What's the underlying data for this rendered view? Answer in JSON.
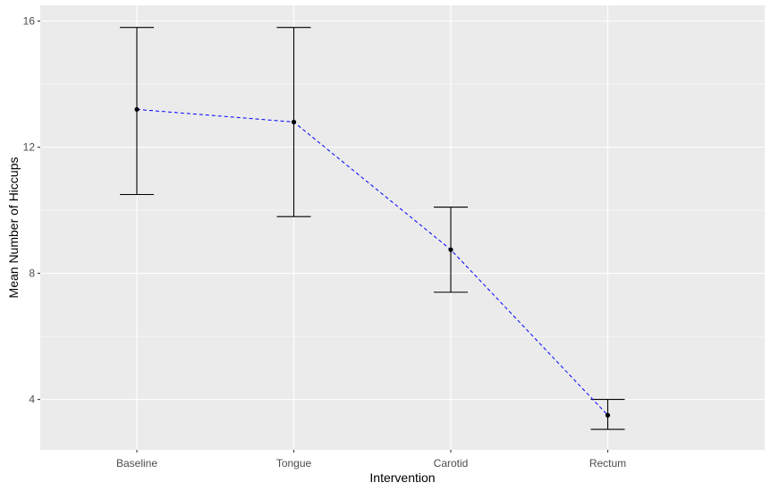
{
  "chart_data": {
    "type": "line",
    "xlabel": "Intervention",
    "ylabel": "Mean Number of Hiccups",
    "categories": [
      "Baseline",
      "Tongue",
      "Carotid",
      "Rectum"
    ],
    "series": [
      {
        "values": [
          13.2,
          12.8,
          8.75,
          3.5
        ],
        "lower": [
          10.5,
          9.8,
          7.4,
          3.05
        ],
        "upper": [
          15.8,
          15.8,
          10.1,
          4.0
        ],
        "line_color": "#0000ff",
        "line_style": "dashed",
        "point_color": "#000000",
        "errorbar_color": "#000000"
      }
    ],
    "ylim": [
      2.4,
      16.5
    ],
    "yticks": [
      4,
      8,
      12,
      16
    ],
    "grid": true,
    "panel_background": "#ebebeb"
  }
}
